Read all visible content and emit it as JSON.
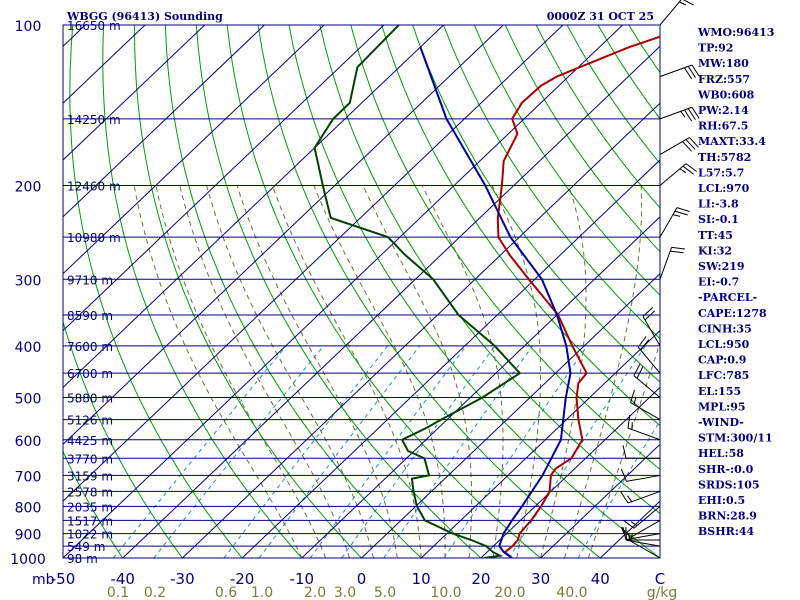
{
  "chart_data": {
    "type": "line",
    "title": "WBGG (96413) Sounding",
    "time": "0000Z 31 OCT 25",
    "pressure_levels": [
      {
        "p": 100,
        "label": "100",
        "height": "16650 m"
      },
      {
        "p": 150,
        "label": "",
        "height": "14250 m"
      },
      {
        "p": 200,
        "label": "200",
        "height": "12460 m"
      },
      {
        "p": 250,
        "label": "",
        "height": "10980 m"
      },
      {
        "p": 300,
        "label": "300",
        "height": "9710 m"
      },
      {
        "p": 350,
        "label": "",
        "height": "8590 m"
      },
      {
        "p": 400,
        "label": "400",
        "height": "7600 m"
      },
      {
        "p": 450,
        "label": "",
        "height": "6700 m"
      },
      {
        "p": 500,
        "label": "500",
        "height": "5880 m"
      },
      {
        "p": 550,
        "label": "",
        "height": "5126 m"
      },
      {
        "p": 600,
        "label": "600",
        "height": "4425 m"
      },
      {
        "p": 650,
        "label": "",
        "height": "3770 m"
      },
      {
        "p": 700,
        "label": "700",
        "height": "3159 m"
      },
      {
        "p": 750,
        "label": "",
        "height": "2578 m"
      },
      {
        "p": 800,
        "label": "800",
        "height": "2035 m"
      },
      {
        "p": 850,
        "label": "",
        "height": "1517 m"
      },
      {
        "p": 900,
        "label": "900",
        "height": "1022 m"
      },
      {
        "p": 950,
        "label": "",
        "height": "549 m"
      },
      {
        "p": 1000,
        "label": "1000",
        "height": "98 m"
      }
    ],
    "pressure_unit": "mb",
    "temp_ticks": [
      "-50",
      "-40",
      "-30",
      "-20",
      "-10",
      "0",
      "10",
      "20",
      "30",
      "40",
      "C"
    ],
    "mixing_ratio_ticks": [
      "0.1",
      "0.2",
      "0.6",
      "1.0",
      "2.0",
      "3.0",
      "5.0",
      "10.0",
      "20.0",
      "40.0",
      "g/kg"
    ],
    "x_range_c": [
      -50,
      50
    ],
    "y_range_mb": [
      100,
      1000
    ],
    "series": [
      {
        "name": "Temperature",
        "color": "#aa0000",
        "points": [
          [
            1000,
            25.2
          ],
          [
            975,
            23.0
          ],
          [
            950,
            23.2
          ],
          [
            925,
            23.0
          ],
          [
            900,
            22.2
          ],
          [
            850,
            21.8
          ],
          [
            800,
            21.0
          ],
          [
            750,
            19.8
          ],
          [
            700,
            17.2
          ],
          [
            680,
            16.8
          ],
          [
            650,
            17.6
          ],
          [
            600,
            16.2
          ],
          [
            550,
            12.0
          ],
          [
            500,
            7.8
          ],
          [
            470,
            5.6
          ],
          [
            450,
            5.2
          ],
          [
            400,
            -2.0
          ],
          [
            350,
            -9.8
          ],
          [
            300,
            -21.0
          ],
          [
            270,
            -28.5
          ],
          [
            250,
            -33.5
          ],
          [
            230,
            -37.0
          ],
          [
            200,
            -42.0
          ],
          [
            180,
            -46.0
          ],
          [
            160,
            -48.5
          ],
          [
            150,
            -52.0
          ],
          [
            140,
            -53.2
          ],
          [
            130,
            -53.0
          ],
          [
            125,
            -52.0
          ],
          [
            110,
            -45.0
          ],
          [
            100,
            -38.0
          ]
        ]
      },
      {
        "name": "Dewpoint",
        "color": "#004000",
        "points": [
          [
            1000,
            20.5
          ],
          [
            990,
            22.8
          ],
          [
            975,
            21.0
          ],
          [
            950,
            18.8
          ],
          [
            925,
            15.2
          ],
          [
            900,
            11.0
          ],
          [
            850,
            4.0
          ],
          [
            800,
            0.2
          ],
          [
            750,
            -3.0
          ],
          [
            710,
            -5.5
          ],
          [
            700,
            -3.2
          ],
          [
            650,
            -7.0
          ],
          [
            630,
            -11.0
          ],
          [
            600,
            -14.0
          ],
          [
            570,
            -12.0
          ],
          [
            550,
            -11.0
          ],
          [
            500,
            -8.0
          ],
          [
            450,
            -6.0
          ],
          [
            400,
            -15.0
          ],
          [
            350,
            -26.5
          ],
          [
            300,
            -37.0
          ],
          [
            270,
            -46.0
          ],
          [
            250,
            -52.0
          ],
          [
            230,
            -65.0
          ],
          [
            200,
            -72.0
          ],
          [
            170,
            -80.0
          ],
          [
            150,
            -82.0
          ],
          [
            140,
            -82.0
          ],
          [
            120,
            -87.0
          ],
          [
            100,
            -87.5
          ]
        ]
      },
      {
        "name": "Parcel",
        "color": "#0000a0",
        "points": [
          [
            1000,
            25.2
          ],
          [
            975,
            22.8
          ],
          [
            950,
            21.0
          ],
          [
            900,
            19.5
          ],
          [
            850,
            18.6
          ],
          [
            800,
            17.8
          ],
          [
            700,
            15.8
          ],
          [
            600,
            12.6
          ],
          [
            500,
            6.0
          ],
          [
            450,
            2.5
          ],
          [
            400,
            -3.0
          ],
          [
            350,
            -10.0
          ],
          [
            300,
            -18.8
          ],
          [
            250,
            -31.5
          ],
          [
            200,
            -44.8
          ],
          [
            150,
            -63.0
          ],
          [
            110,
            -80.0
          ]
        ]
      }
    ],
    "wind_barbs": [
      {
        "p": 1000,
        "dir": 300,
        "spd": 5
      },
      {
        "p": 950,
        "dir": 280,
        "spd": 10
      },
      {
        "p": 925,
        "dir": 270,
        "spd": 15
      },
      {
        "p": 900,
        "dir": 260,
        "spd": 10
      },
      {
        "p": 850,
        "dir": 240,
        "spd": 10
      },
      {
        "p": 800,
        "dir": 230,
        "spd": 15
      },
      {
        "p": 750,
        "dir": 250,
        "spd": 15
      },
      {
        "p": 700,
        "dir": 260,
        "spd": 10
      },
      {
        "p": 650,
        "dir": 270,
        "spd": 10
      },
      {
        "p": 600,
        "dir": 290,
        "spd": 15
      },
      {
        "p": 550,
        "dir": 300,
        "spd": 15
      },
      {
        "p": 500,
        "dir": 310,
        "spd": 20
      },
      {
        "p": 450,
        "dir": 320,
        "spd": 20
      },
      {
        "p": 400,
        "dir": 330,
        "spd": 20
      },
      {
        "p": 300,
        "dir": 20,
        "spd": 20
      },
      {
        "p": 250,
        "dir": 30,
        "spd": 25
      },
      {
        "p": 200,
        "dir": 50,
        "spd": 25
      },
      {
        "p": 175,
        "dir": 60,
        "spd": 30
      },
      {
        "p": 150,
        "dir": 70,
        "spd": 35
      },
      {
        "p": 125,
        "dir": 70,
        "spd": 30
      },
      {
        "p": 100,
        "dir": 40,
        "spd": 15
      }
    ],
    "indices": [
      "WMO:96413",
      "TP:92",
      "MW:180",
      "FRZ:557",
      "WB0:608",
      "PW:2.14",
      "RH:67.5",
      "MAXT:33.4",
      "TH:5782",
      "L57:5.7",
      "LCL:970",
      "LI:-3.8",
      "SI:-0.1",
      "TT:45",
      "KI:32",
      "SW:219",
      "EI:-0.7",
      "-PARCEL-",
      "CAPE:1278",
      "CINH:35",
      "LCL:950",
      "CAP:0.9",
      "LFC:785",
      "EL:155",
      "MPL:95",
      "-WIND-",
      "STM:300/11",
      "HEL:58",
      "SHR-:0.0",
      "SRDS:105",
      "EHI:0.5",
      "BRN:28.9",
      "BSHR:44"
    ]
  },
  "colors": {
    "isobar": "#00007f",
    "isotherm": "#00007f",
    "dry_adiabat": "#009c00",
    "moist_adiabat": "#6e6e3c",
    "mixing_ratio": "#1a8fd0",
    "mixing_label": "#7a7a3a",
    "text": "#00007f",
    "barb": "#000000"
  }
}
